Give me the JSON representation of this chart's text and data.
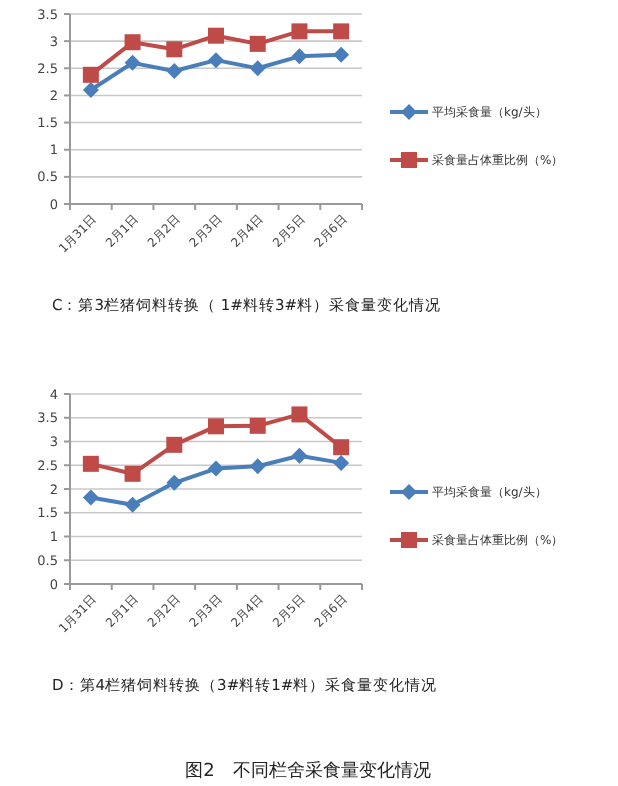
{
  "chart_data": [
    {
      "type": "line",
      "categories": [
        "1月31日",
        "2月1日",
        "2月2日",
        "2月3日",
        "2月4日",
        "2月5日",
        "2月6日"
      ],
      "series": [
        {
          "name": "平均采食量（kg/头）",
          "color": "#4a7ebb",
          "marker": "diamond",
          "values": [
            2.1,
            2.6,
            2.45,
            2.65,
            2.5,
            2.72,
            2.75
          ]
        },
        {
          "name": "采食量占体重比例（%）",
          "color": "#be4b48",
          "marker": "square",
          "values": [
            2.38,
            2.98,
            2.85,
            3.1,
            2.95,
            3.18,
            3.18
          ]
        }
      ],
      "ylim": [
        0,
        3.5
      ],
      "yticks": [
        0,
        0.5,
        1,
        1.5,
        2,
        2.5,
        3,
        3.5
      ],
      "grid": "y",
      "legend": "right",
      "annotations": [
        "C：第3栏猪饲料转换（ 1#料转3#料）采食量变化情况"
      ]
    },
    {
      "type": "line",
      "categories": [
        "1月31日",
        "2月1日",
        "2月2日",
        "2月3日",
        "2月4日",
        "2月5日",
        "2月6日"
      ],
      "series": [
        {
          "name": "平均采食量（kg/头）",
          "color": "#4a7ebb",
          "marker": "diamond",
          "values": [
            1.82,
            1.67,
            2.13,
            2.43,
            2.48,
            2.7,
            2.55
          ]
        },
        {
          "name": "采食量占体重比例（%）",
          "color": "#be4b48",
          "marker": "square",
          "values": [
            2.53,
            2.32,
            2.93,
            3.32,
            3.33,
            3.57,
            2.88
          ]
        }
      ],
      "ylim": [
        0,
        4
      ],
      "yticks": [
        0,
        0.5,
        1,
        1.5,
        2,
        2.5,
        3,
        3.5,
        4
      ],
      "grid": "y",
      "legend": "right",
      "annotations": [
        "D：第4栏猪饲料转换（3#料转1#料）采食量变化情况",
        "图2　不同栏舍采食量变化情况"
      ]
    }
  ]
}
